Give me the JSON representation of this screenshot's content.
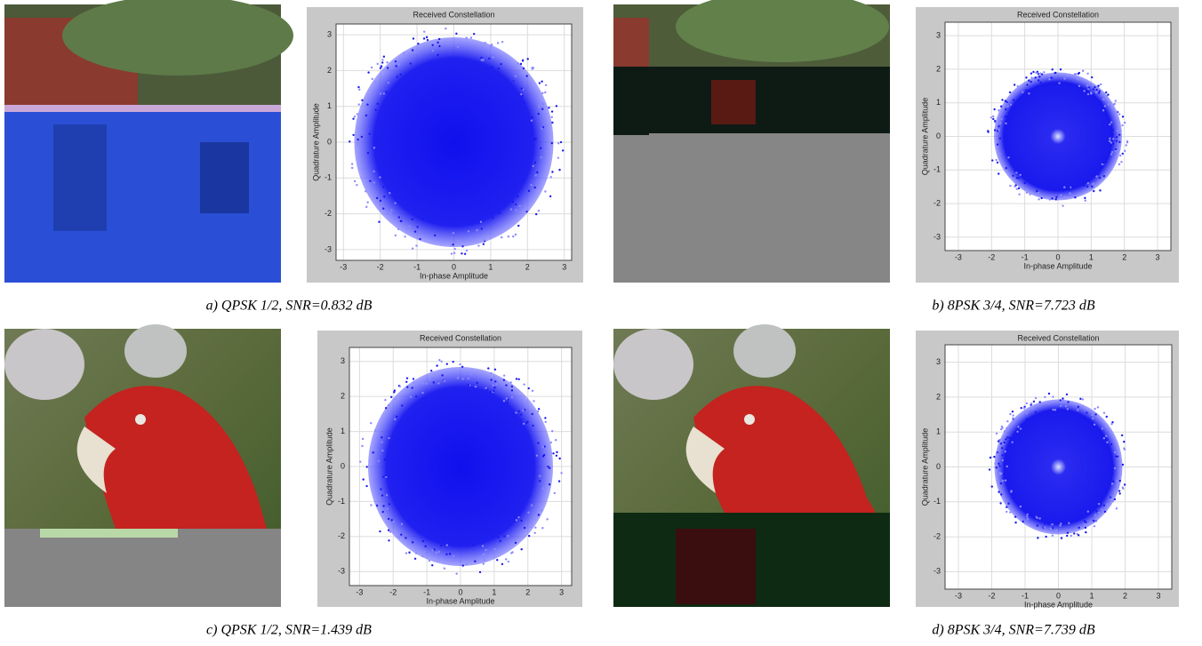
{
  "panels": [
    {
      "caption": "a) QPSK 1/2, SNR=0.832 dB",
      "plot": {
        "title": "Received Constellation",
        "xlabel": "In-phase Amplitude",
        "ylabel": "Quadrature Amplitude",
        "xlim": [
          -3.2,
          3.2
        ],
        "ylim": [
          -3.3,
          3.3
        ],
        "xticks": [
          -3,
          -2,
          -1,
          0,
          1,
          2,
          3
        ],
        "yticks": [
          -3,
          -2,
          -1,
          0,
          1,
          2,
          3
        ]
      }
    },
    {
      "caption": "b) 8PSK 3/4, SNR=7.723 dB",
      "plot": {
        "title": "Received Constellation",
        "xlabel": "In-phase Amplitude",
        "ylabel": "Quadrature Amplitude",
        "xlim": [
          -3.4,
          3.4
        ],
        "ylim": [
          -3.4,
          3.4
        ],
        "xticks": [
          -3,
          -2,
          -1,
          0,
          1,
          2,
          3
        ],
        "yticks": [
          -3,
          -2,
          -1,
          0,
          1,
          2,
          3
        ]
      }
    },
    {
      "caption": "c) QPSK 1/2, SNR=1.439 dB",
      "plot": {
        "title": "Received Constellation",
        "xlabel": "In-phase Amplitude",
        "ylabel": "Quadrature Amplitude",
        "xlim": [
          -3.3,
          3.3
        ],
        "ylim": [
          -3.4,
          3.4
        ],
        "xticks": [
          -3,
          -2,
          -1,
          0,
          1,
          2,
          3
        ],
        "yticks": [
          -3,
          -2,
          -1,
          0,
          1,
          2,
          3
        ]
      }
    },
    {
      "caption": "d) 8PSK 3/4, SNR=7.739 dB",
      "plot": {
        "title": "Received Constellation",
        "xlabel": "In-phase Amplitude",
        "ylabel": "Quadrature Amplitude",
        "xlim": [
          -3.4,
          3.4
        ],
        "ylim": [
          -3.5,
          3.5
        ],
        "xticks": [
          -3,
          -2,
          -1,
          0,
          1,
          2,
          3
        ],
        "yticks": [
          -3,
          -2,
          -1,
          0,
          1,
          2,
          3
        ]
      }
    }
  ]
}
